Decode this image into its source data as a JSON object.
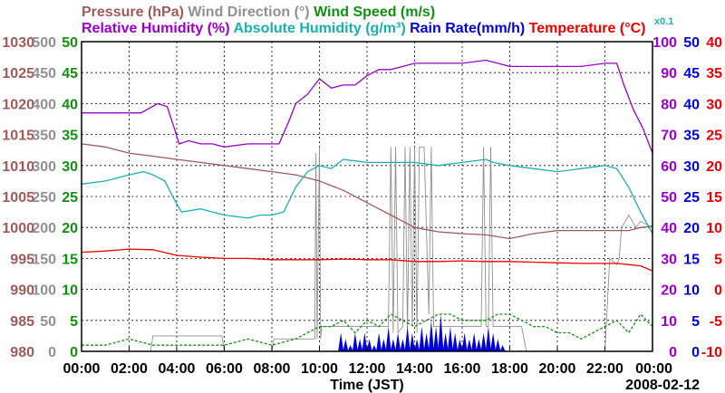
{
  "chart_data": {
    "type": "line",
    "date_label": "2008-02-12",
    "xlabel": "Time (JST)",
    "x_ticks": [
      "00:00",
      "02:00",
      "04:00",
      "06:00",
      "08:00",
      "10:00",
      "12:00",
      "14:00",
      "16:00",
      "18:00",
      "20:00",
      "22:00",
      "00:00"
    ],
    "xlim_hours": [
      0,
      24
    ],
    "legend_row1": [
      {
        "name": "Pressure (hPa)",
        "color": "#a05a5a"
      },
      {
        "name": "Wind Direction (°)",
        "color": "#909090"
      },
      {
        "name": "Wind Speed (m/s)",
        "color": "#109010"
      }
    ],
    "legend_row2": [
      {
        "name": "Relative Humidity (%)",
        "color": "#9900cc"
      },
      {
        "name": "Absolute Humidity (g/m³)",
        "color": "#1ab0b0"
      },
      {
        "name": "Rain Rate(mm/h)",
        "color": "#0000dd"
      },
      {
        "name": "Temperature (°C)",
        "color": "#ee0000"
      }
    ],
    "rain_scale_note": "x0.1",
    "left_axes": [
      {
        "name": "pressure",
        "color": "#a05a5a",
        "ticks": [
          "980",
          "985",
          "990",
          "995",
          "1000",
          "1005",
          "1010",
          "1015",
          "1020",
          "1025",
          "1030"
        ],
        "ylim": [
          980,
          1030
        ]
      },
      {
        "name": "wind_direction",
        "color": "#909090",
        "ticks": [
          "0",
          "50",
          "100",
          "150",
          "200",
          "250",
          "300",
          "350",
          "400",
          "450",
          "500"
        ],
        "ylim": [
          0,
          500
        ]
      },
      {
        "name": "wind_speed",
        "color": "#109010",
        "ticks": [
          "0",
          "5",
          "10",
          "15",
          "20",
          "25",
          "30",
          "35",
          "40",
          "45",
          "50"
        ],
        "ylim": [
          0,
          50
        ]
      }
    ],
    "right_axes": [
      {
        "name": "humidity",
        "color": "#9900cc",
        "ticks": [
          "0",
          "10",
          "20",
          "30",
          "40",
          "50",
          "60",
          "70",
          "80",
          "90",
          "100"
        ],
        "ylim": [
          0,
          100
        ]
      },
      {
        "name": "rain_rate",
        "color": "#0000dd",
        "ticks": [
          "0",
          "5",
          "10",
          "15",
          "20",
          "25",
          "30",
          "35",
          "40",
          "45",
          "50"
        ],
        "ylim": [
          0,
          50
        ]
      },
      {
        "name": "temperature",
        "color": "#ee0000",
        "ticks": [
          "-10",
          "-5",
          "0",
          "5",
          "10",
          "15",
          "20",
          "25",
          "30",
          "35",
          "40"
        ],
        "ylim": [
          -10,
          40
        ]
      }
    ],
    "series": [
      {
        "name": "Relative Humidity",
        "unit": "%",
        "color": "#9900cc",
        "x": [
          0,
          1.5,
          2.5,
          3.2,
          3.6,
          3.9,
          4.1,
          4.5,
          5,
          5.5,
          6,
          7,
          7.8,
          8.3,
          8.7,
          9,
          9.5,
          10,
          10.5,
          11,
          11.5,
          12,
          12.5,
          13,
          13.5,
          14,
          15,
          16,
          17,
          17.5,
          18,
          19,
          20,
          21,
          22,
          22.5,
          22.8,
          23.2,
          23.6,
          24
        ],
        "y": [
          77,
          77,
          77,
          80,
          79,
          72,
          67,
          68,
          67,
          67,
          66,
          67,
          67,
          67,
          74,
          80,
          83,
          88,
          85,
          86,
          86,
          89,
          91,
          91,
          92,
          93,
          93,
          93,
          94,
          93,
          92,
          92,
          92,
          92,
          93,
          93,
          86,
          78,
          72,
          64
        ]
      },
      {
        "name": "Absolute Humidity",
        "unit": "g/m3",
        "color": "#1ab0b0",
        "x": [
          0,
          1,
          2,
          2.6,
          3,
          3.5,
          3.9,
          4.2,
          5,
          6,
          7,
          7.5,
          8,
          8.5,
          9,
          9.5,
          10,
          10.5,
          11,
          12,
          13,
          14,
          15,
          16,
          17,
          17.3,
          18,
          19,
          20,
          21,
          22,
          22.5,
          23,
          23.5,
          24
        ],
        "y": [
          54,
          55,
          57,
          58,
          57,
          55,
          49,
          45,
          46,
          44,
          43,
          44,
          44,
          45,
          53,
          58,
          60,
          59,
          62,
          61,
          61,
          61,
          60,
          61,
          62,
          61,
          60,
          59,
          58,
          59,
          60,
          59,
          53,
          45,
          38
        ]
      },
      {
        "name": "Pressure",
        "unit": "hPa",
        "color": "#a05a5a",
        "x": [
          0,
          1,
          2,
          3,
          4,
          5,
          6,
          7,
          8,
          9,
          10,
          11,
          12,
          12.5,
          13,
          13.5,
          14,
          15,
          16,
          17,
          18,
          19,
          20,
          21,
          22,
          23,
          23.5,
          24
        ],
        "y": [
          1013.5,
          1013,
          1012,
          1011.5,
          1011,
          1010.5,
          1010,
          1009.5,
          1009,
          1008.5,
          1007.5,
          1006,
          1004,
          1003,
          1002,
          1001,
          1000,
          999.3,
          999,
          998.8,
          998.2,
          999,
          999.5,
          999.5,
          999.5,
          999.5,
          1000,
          1000.2
        ]
      },
      {
        "name": "Temperature",
        "unit": "°C",
        "color": "#ee0000",
        "x": [
          0,
          1,
          2,
          3,
          4,
          5,
          6,
          7,
          8,
          9,
          10,
          11,
          12,
          13,
          14,
          15,
          16,
          17,
          18,
          19,
          20,
          21,
          22,
          22.5,
          23,
          23.5,
          24
        ],
        "y": [
          6,
          6.2,
          6.5,
          6.4,
          5.5,
          5.2,
          5.0,
          5.0,
          4.8,
          4.8,
          4.8,
          4.9,
          4.8,
          4.8,
          4.5,
          4.5,
          4.6,
          4.5,
          4.5,
          4.4,
          4.3,
          4.2,
          4.2,
          4.2,
          4.0,
          3.8,
          3.0
        ]
      },
      {
        "name": "Wind Direction",
        "unit": "deg",
        "color": "#909090",
        "x": [
          0,
          2.9,
          3.0,
          5.9,
          6.0,
          8.0,
          8.1,
          9.8,
          9.85,
          9.9,
          10.0,
          10.05,
          10.1,
          10.2,
          10.3,
          10.8,
          12.9,
          13.0,
          13.1,
          13.2,
          13.3,
          13.5,
          13.6,
          13.7,
          13.8,
          13.9,
          14.0,
          14.1,
          14.2,
          14.4,
          14.6,
          14.7,
          14.8,
          15.0,
          16.8,
          16.9,
          17.0,
          17.1,
          17.2,
          17.3,
          18.0,
          18.5,
          18.7,
          19.0,
          22.0,
          22.2,
          22.5,
          22.6,
          22.7,
          23.0,
          23.3,
          23.5,
          24
        ],
        "y": [
          0,
          0,
          25,
          25,
          0,
          0,
          20,
          20,
          320,
          20,
          330,
          20,
          40,
          40,
          40,
          40,
          40,
          330,
          30,
          330,
          30,
          40,
          330,
          30,
          330,
          40,
          330,
          30,
          330,
          330,
          60,
          330,
          40,
          40,
          40,
          330,
          40,
          40,
          330,
          40,
          40,
          40,
          0,
          0,
          0,
          150,
          140,
          150,
          200,
          220,
          200,
          210,
          200
        ]
      },
      {
        "name": "Wind Speed",
        "unit": "m/s",
        "color": "#109010",
        "x": [
          0,
          1,
          2,
          3,
          4,
          5,
          6,
          7,
          8,
          9,
          9.5,
          10,
          10.5,
          11,
          11.5,
          12,
          12.5,
          13,
          13.5,
          14,
          14.5,
          15,
          15.5,
          16,
          16.5,
          17,
          17.5,
          18,
          18.5,
          19,
          19.5,
          20,
          20.5,
          21,
          21.5,
          22,
          22.5,
          23,
          23.5,
          24
        ],
        "y": [
          1,
          1,
          2,
          1,
          1,
          1,
          1,
          2,
          1,
          2,
          3,
          4,
          4,
          5,
          3,
          5,
          4,
          6,
          5,
          4,
          5,
          6,
          6,
          5,
          5,
          5,
          6,
          6,
          5,
          4,
          4,
          3,
          3,
          2,
          3,
          4,
          5,
          3,
          6,
          4
        ]
      },
      {
        "name": "Rain Rate",
        "unit": "mm/h",
        "color": "#0000dd",
        "x": [
          10.9,
          11.1,
          11.3,
          11.5,
          11.7,
          11.9,
          12.1,
          12.3,
          12.5,
          12.7,
          12.9,
          13.1,
          13.3,
          13.5,
          13.7,
          13.9,
          14.1,
          14.3,
          14.5,
          14.7,
          14.9,
          15.1,
          15.3,
          15.5,
          15.7,
          15.9,
          16.1,
          16.3,
          16.5,
          16.7,
          16.9,
          17.1,
          17.3,
          17.5,
          17.7
        ],
        "y": [
          3,
          2,
          1,
          3,
          2,
          3,
          2,
          1,
          3,
          2,
          4,
          2,
          3,
          2,
          4,
          3,
          2,
          4,
          3,
          5,
          4,
          6,
          3,
          4,
          3,
          2,
          3,
          2,
          3,
          2,
          3,
          4,
          3,
          2,
          1
        ]
      }
    ]
  }
}
